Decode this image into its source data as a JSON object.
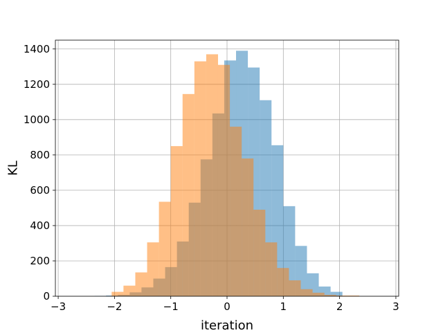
{
  "chart_data": {
    "type": "histogram",
    "title": "",
    "xlabel": "iteration",
    "ylabel": "KL",
    "xlim": [
      -3.05,
      3.05
    ],
    "ylim": [
      0,
      1450
    ],
    "xticks": [
      -3,
      -2,
      -1,
      0,
      1,
      2,
      3
    ],
    "xtick_labels": [
      "−3",
      "−2",
      "−1",
      "0",
      "1",
      "2",
      "3"
    ],
    "yticks": [
      0,
      200,
      400,
      600,
      800,
      1000,
      1200,
      1400
    ],
    "ytick_labels": [
      "0",
      "200",
      "400",
      "600",
      "800",
      "1000",
      "1200",
      "1400"
    ],
    "grid": true,
    "legend": "none",
    "series": [
      {
        "color": "#1f77b4",
        "alpha": 0.5,
        "bin_edges": [
          -2.35,
          -2.15,
          -1.94,
          -1.73,
          -1.52,
          -1.31,
          -1.1,
          -0.89,
          -0.68,
          -0.47,
          -0.26,
          -0.05,
          0.16,
          0.37,
          0.58,
          0.79,
          1.0,
          1.21,
          1.42,
          1.63,
          1.84,
          2.05
        ],
        "counts": [
          2,
          4,
          8,
          22,
          50,
          100,
          165,
          310,
          530,
          775,
          1035,
          1335,
          1390,
          1295,
          1110,
          855,
          510,
          285,
          130,
          55,
          25
        ]
      },
      {
        "color": "#ff7f0e",
        "alpha": 0.5,
        "bin_edges": [
          -2.05,
          -1.84,
          -1.63,
          -1.42,
          -1.21,
          -1.0,
          -0.79,
          -0.58,
          -0.37,
          -0.16,
          0.05,
          0.26,
          0.47,
          0.68,
          0.89,
          1.1,
          1.31,
          1.52,
          1.73,
          1.94,
          2.15,
          2.35
        ],
        "counts": [
          25,
          60,
          135,
          305,
          535,
          850,
          1145,
          1330,
          1370,
          1310,
          960,
          780,
          490,
          305,
          160,
          90,
          40,
          20,
          8,
          4,
          4
        ]
      }
    ]
  }
}
